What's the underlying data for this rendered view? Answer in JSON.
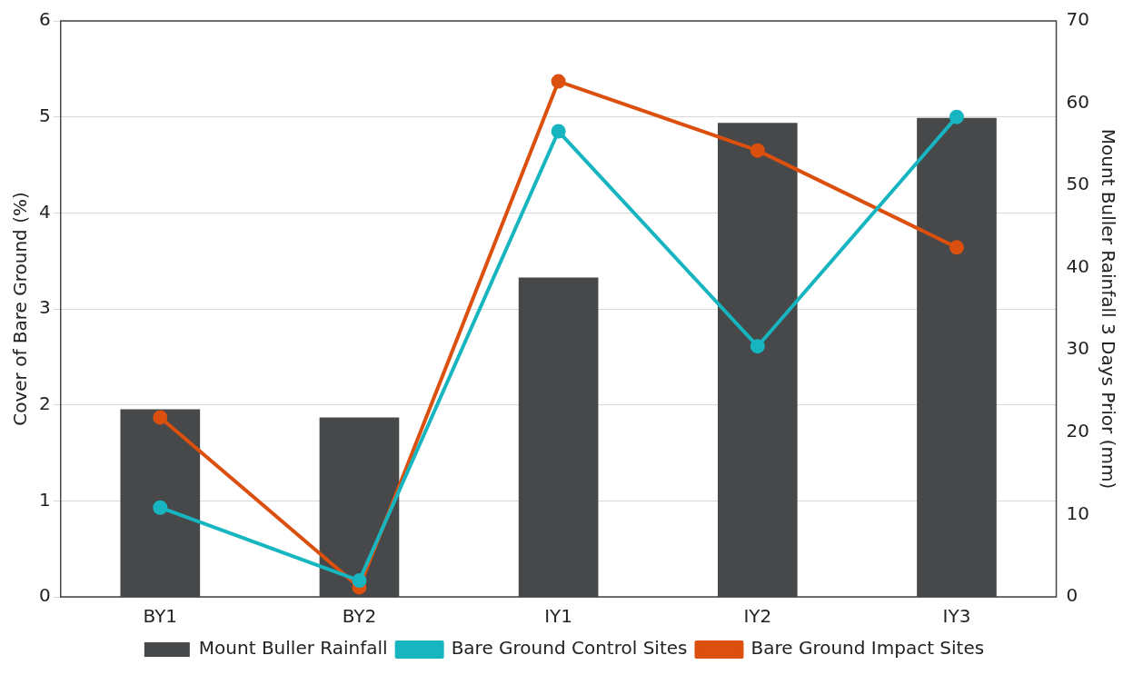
{
  "chart_data": {
    "type": "bar",
    "categories": [
      "BY1",
      "BY2",
      "IY1",
      "IY2",
      "IY3"
    ],
    "series": [
      {
        "name": "Mount Buller Rainfall",
        "axis": "y2",
        "color": "#474849",
        "values": [
          22.8,
          21.8,
          38.8,
          57.6,
          58.2
        ]
      },
      {
        "name": "Bare Ground Control Sites",
        "type": "line",
        "color": "#16b5c0",
        "values": [
          0.93,
          0.17,
          4.85,
          2.61,
          5.0
        ]
      },
      {
        "name": "Bare Ground Impact Sites",
        "type": "line",
        "color": "#db4f0f",
        "values": [
          1.87,
          0.1,
          5.37,
          4.65,
          3.64
        ]
      }
    ],
    "ylabel": "Cover of Bare Ground (%)",
    "y2label": "Mount Buller Rainfall 3 Days Prior (mm)",
    "ylim": [
      0,
      6
    ],
    "yticks": [
      0,
      1,
      2,
      3,
      4,
      5,
      6
    ],
    "y2lim": [
      0,
      70
    ],
    "y2ticks": [
      0,
      10,
      20,
      30,
      40,
      50,
      60,
      70
    ],
    "grid": "y",
    "legend": "bottom",
    "marker": "circle",
    "line_style": "solid"
  }
}
